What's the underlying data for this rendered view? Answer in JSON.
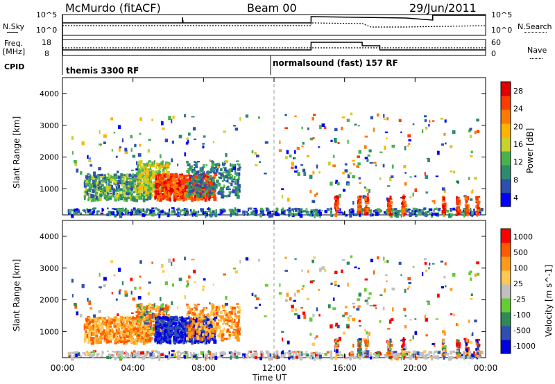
{
  "header": {
    "station": "McMurdo (fitACF)",
    "beam": "Beam 00",
    "date": "29/Jun/2011"
  },
  "status_panels": {
    "nsky_label": "N.Sky",
    "nsky_ticks": [
      "10^5",
      "10^0"
    ],
    "nsearch_label": "N.Search",
    "nsearch_ticks": [
      "10^5",
      "10^0"
    ],
    "freq_label": "Freq.",
    "freq_unit": "[MHz]",
    "freq_ticks": [
      "18",
      "8"
    ],
    "nave_label": "Nave",
    "nave_ticks": [
      "60",
      "0"
    ],
    "cpid_label": "CPID",
    "cpid_segments": [
      "themis 3300 RF",
      "normalsound (fast) 157 RF"
    ]
  },
  "colors": {
    "power_scale": [
      "#0000ff",
      "#2e4fb0",
      "#2e8b6e",
      "#49b24c",
      "#c8d22a",
      "#ffb300",
      "#ff7a00",
      "#ff3b00",
      "#e00000"
    ],
    "velocity_scale": [
      "#ff0000",
      "#ff5a00",
      "#ff9a1a",
      "#ffc850",
      "#c0c0c0",
      "#66cc33",
      "#2e8b57",
      "#2f4fb0",
      "#0000e0"
    ],
    "ground_scatter": "#808080"
  },
  "chart_data": [
    {
      "type": "heatmap",
      "name": "power",
      "xlabel": "",
      "ylabel": "Slant Range [km]",
      "x_ticks": [
        "00:00",
        "04:00",
        "08:00",
        "12:00",
        "16:00",
        "20:00",
        "00:00"
      ],
      "xlim_hours": [
        0,
        24
      ],
      "ylim": [
        180,
        4500
      ],
      "y_ticks": [
        1000,
        2000,
        3000,
        4000
      ],
      "colorbar_label": "Power [dB]",
      "colorbar_ticks": [
        4,
        8,
        12,
        16,
        20,
        24,
        28
      ],
      "colorbar_range": [
        0,
        30
      ]
    },
    {
      "type": "heatmap",
      "name": "velocity",
      "xlabel": "Time UT",
      "ylabel": "Slant Range [km]",
      "x_ticks": [
        "00:00",
        "04:00",
        "08:00",
        "12:00",
        "16:00",
        "20:00",
        "00:00"
      ],
      "xlim_hours": [
        0,
        24
      ],
      "ylim": [
        180,
        4500
      ],
      "y_ticks": [
        1000,
        2000,
        3000,
        4000
      ],
      "colorbar_label": "Velocity [m s^-1]",
      "colorbar_ticks": [
        1000,
        500,
        100,
        25,
        -25,
        -100,
        -500,
        -1000
      ]
    }
  ]
}
